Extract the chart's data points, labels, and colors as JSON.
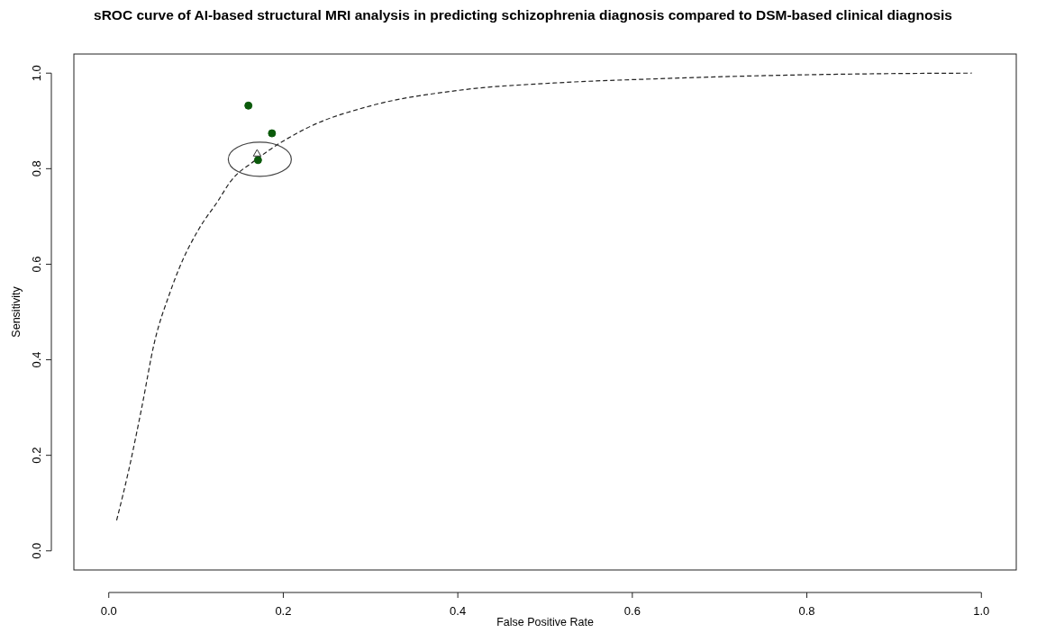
{
  "chart_data": {
    "type": "scatter",
    "title": "sROC curve of AI-based structural MRI analysis in predicting schizophrenia diagnosis compared to DSM-based clinical diagnosis",
    "xlabel": "False Positive Rate",
    "ylabel": "Sensitivity",
    "xlim": [
      -0.04,
      1.04
    ],
    "ylim": [
      -0.04,
      1.04
    ],
    "xticks": [
      {
        "value": 0,
        "label": "0.0"
      },
      0.2,
      0.4,
      0.6,
      0.8,
      {
        "value": 1,
        "label": "1.0"
      }
    ],
    "yticks": [
      {
        "value": 0,
        "label": "0.0"
      },
      0.2,
      0.4,
      0.6,
      0.8,
      {
        "value": 1,
        "label": "1.0"
      }
    ],
    "grid": false,
    "series": [
      {
        "type": "line",
        "color": "#222222",
        "line_style": "dashed",
        "marker": "none",
        "x": [
          0.009,
          0.023,
          0.038,
          0.052,
          0.07,
          0.081,
          0.103,
          0.125,
          0.139,
          0.169,
          0.227,
          0.299,
          0.401,
          0.517,
          0.626,
          0.757,
          0.895,
          0.989
        ],
        "values": [
          0.064,
          0.17,
          0.302,
          0.434,
          0.54,
          0.593,
          0.673,
          0.732,
          0.772,
          0.819,
          0.885,
          0.931,
          0.964,
          0.98,
          0.988,
          0.995,
          0.999,
          1.0
        ]
      },
      {
        "color": "#0b5a0b",
        "marker": "circle",
        "x": [
          0.16,
          0.187,
          0.171
        ],
        "values": [
          0.932,
          0.874,
          0.818
        ]
      },
      {
        "type": "scatter",
        "color": "#333333",
        "marker": "triangle",
        "x": [
          0.17
        ],
        "values": [
          0.831
        ]
      }
    ]
  }
}
